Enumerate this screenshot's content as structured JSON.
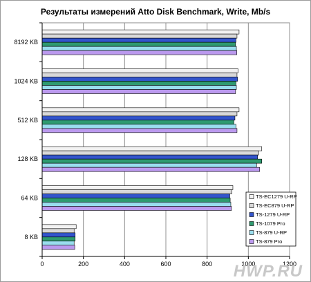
{
  "chart_data": {
    "type": "bar",
    "orientation": "horizontal",
    "title": "Результаты измерений Atto Disk Benchmark, Write, Mb/s",
    "categories": [
      "8192 KB",
      "1024 KB",
      "512 KB",
      "128 KB",
      "64 KB",
      "8 KB"
    ],
    "xlim": [
      0,
      1200
    ],
    "xticks": [
      0,
      200,
      400,
      600,
      800,
      1000,
      1200
    ],
    "grid": true,
    "legend_position": "right",
    "series": [
      {
        "name": "TS-EC1279 U-RP",
        "color": "#f2f2f2",
        "values": [
          955,
          950,
          955,
          1065,
          925,
          165
        ]
      },
      {
        "name": "TS-EC879 U-RP",
        "color": "#d9d9d9",
        "values": [
          945,
          945,
          945,
          1050,
          920,
          155
        ]
      },
      {
        "name": "TS-1279 U-RP",
        "color": "#3355cc",
        "values": [
          940,
          948,
          935,
          1045,
          910,
          160
        ]
      },
      {
        "name": "TS-1079 Pro",
        "color": "#2e9a70",
        "values": [
          938,
          940,
          930,
          1065,
          912,
          160
        ]
      },
      {
        "name": "TS-879 U-RP",
        "color": "#99ddee",
        "values": [
          942,
          942,
          940,
          1040,
          915,
          155
        ]
      },
      {
        "name": "TS-879 Pro",
        "color": "#bb99ee",
        "values": [
          944,
          938,
          945,
          1055,
          918,
          158
        ]
      }
    ]
  },
  "watermark": "HWP.RU"
}
